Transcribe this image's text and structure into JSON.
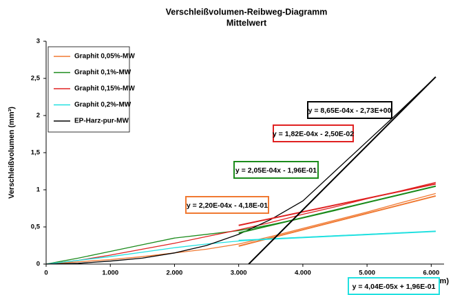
{
  "chart_data": {
    "type": "line",
    "title": "Verschleißvolumen-Reibweg-Diagramm",
    "subtitle": "Mittelwert",
    "x_label": "Reibweg (m)",
    "y_label": "Verschleißvolumen (mm³)",
    "x": [
      0,
      500,
      1000,
      1500,
      2000,
      2500,
      3000,
      3500,
      4000,
      4500,
      5000,
      5500,
      6070
    ],
    "series": [
      {
        "name": "Graphit 0,05%-MW",
        "color": "#f07830",
        "values": [
          0,
          0.03,
          0.06,
          0.1,
          0.15,
          0.2,
          0.27,
          0.37,
          0.48,
          0.59,
          0.7,
          0.82,
          0.95
        ]
      },
      {
        "name": "Graphit 0,1%-MW",
        "color": "#1a8a1a",
        "values": [
          0,
          0.08,
          0.17,
          0.26,
          0.35,
          0.4,
          0.45,
          0.53,
          0.62,
          0.72,
          0.83,
          0.93,
          1.05
        ]
      },
      {
        "name": "Graphit 0,15%-MW",
        "color": "#e02020",
        "values": [
          0,
          0.05,
          0.12,
          0.2,
          0.28,
          0.37,
          0.46,
          0.56,
          0.67,
          0.77,
          0.88,
          0.98,
          1.1
        ]
      },
      {
        "name": "Graphit 0,2%-MW",
        "color": "#20e0e0",
        "values": [
          0,
          0.05,
          0.1,
          0.16,
          0.22,
          0.27,
          0.31,
          0.34,
          0.36,
          0.38,
          0.4,
          0.42,
          0.44
        ]
      },
      {
        "name": "EP-Harz-pur-MW",
        "color": "#000000",
        "values": [
          0,
          0.01,
          0.04,
          0.08,
          0.15,
          0.25,
          0.4,
          0.6,
          0.85,
          1.25,
          1.65,
          2.05,
          2.52
        ]
      }
    ],
    "trendlines": [
      {
        "label": "y = 2,20E-04x - 4,18E-01",
        "slope": 0.00022,
        "intercept": -0.418,
        "x": [
          3000,
          6070
        ],
        "color": "#f07830"
      },
      {
        "label": "y = 2,05E-04x - 1,96E-01",
        "slope": 0.000205,
        "intercept": -0.196,
        "x": [
          3000,
          6070
        ],
        "color": "#1a8a1a"
      },
      {
        "label": "y = 1,82E-04x - 2,50E-02",
        "slope": 0.000182,
        "intercept": -0.025,
        "x": [
          3000,
          6070
        ],
        "color": "#e02020"
      },
      {
        "label": "y = 4,04E-05x + 1,96E-01",
        "slope": 4.04e-05,
        "intercept": 0.196,
        "x": [
          3000,
          6070
        ],
        "color": "#20e0e0"
      },
      {
        "label": "y = 8,65E-04x - 2,73E+00",
        "slope": 0.000865,
        "intercept": -2.73,
        "x": [
          3156,
          6070
        ],
        "color": "#000000"
      }
    ],
    "xlim": [
      0,
      6200
    ],
    "xticks": [
      0,
      {
        "value": 1000,
        "label": "1.000"
      },
      {
        "value": 2000,
        "label": "2.000"
      },
      {
        "value": 3000,
        "label": "3.000"
      },
      {
        "value": 4000,
        "label": "4.000"
      },
      {
        "value": 5000,
        "label": "5.000"
      },
      {
        "value": 6000,
        "label": "6.000"
      }
    ],
    "ylim": [
      0,
      3
    ],
    "yticks": [
      0,
      {
        "value": 0.5,
        "label": "0,5"
      },
      1,
      {
        "value": 1.5,
        "label": "1,5"
      },
      2,
      {
        "value": 2.5,
        "label": "2,5"
      },
      3
    ],
    "legend": "upper left"
  }
}
